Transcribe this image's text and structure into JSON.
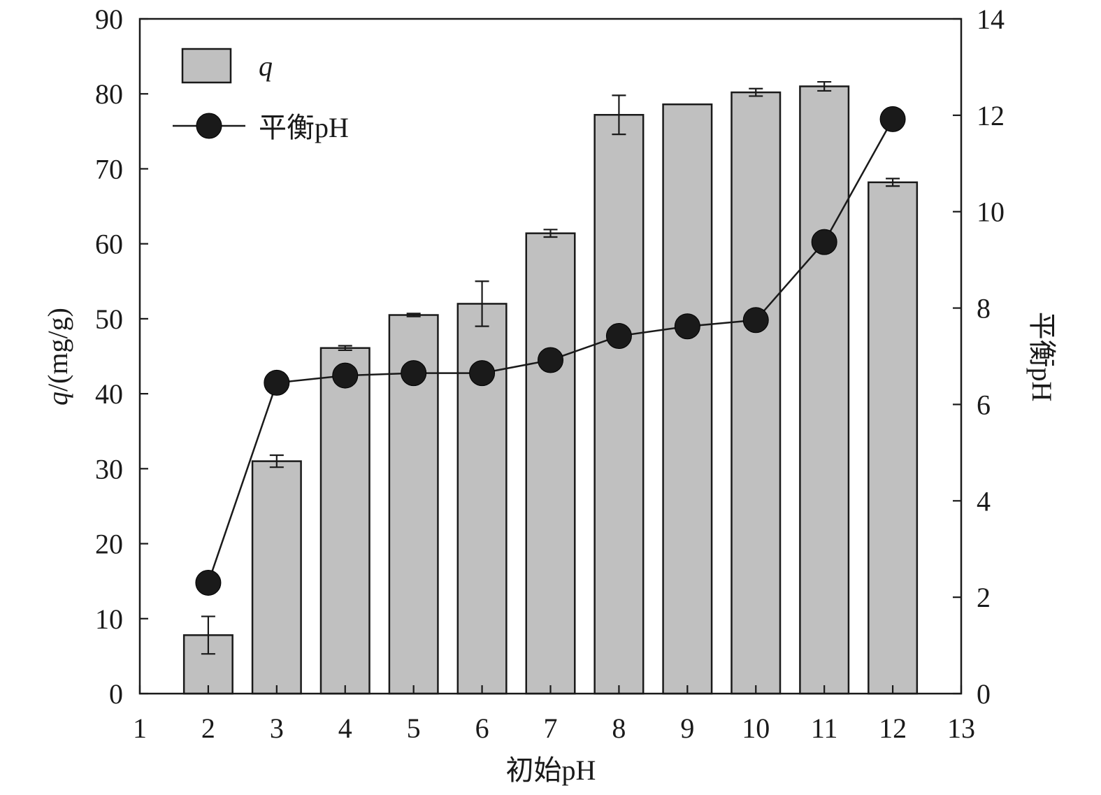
{
  "chart_data": {
    "type": "bar",
    "x": [
      2,
      3,
      4,
      5,
      6,
      7,
      8,
      9,
      10,
      11,
      12
    ],
    "series": [
      {
        "name": "q",
        "type": "bar",
        "axis": "left",
        "values": [
          7.8,
          31.0,
          46.1,
          50.5,
          52.0,
          61.4,
          77.2,
          78.6,
          80.2,
          81.0,
          68.2
        ],
        "errors": [
          2.5,
          0.8,
          0.3,
          0.2,
          3.0,
          0.5,
          2.6,
          0,
          0.5,
          0.6,
          0.5
        ]
      },
      {
        "name": "平衡pH",
        "type": "line",
        "axis": "right",
        "values": [
          2.3,
          6.45,
          6.6,
          6.65,
          6.65,
          6.92,
          7.42,
          7.62,
          7.75,
          9.37,
          11.92
        ]
      }
    ],
    "xlabel": "初始pH",
    "ylabel_italic": "q",
    "ylabel_rest": "/(mg/g)",
    "y2label": "平衡pH",
    "xlim": [
      1,
      13
    ],
    "ylim": [
      0,
      90
    ],
    "y2lim": [
      0,
      14
    ],
    "xticks": [
      "1",
      "2",
      "3",
      "4",
      "5",
      "6",
      "7",
      "8",
      "9",
      "10",
      "11",
      "12",
      "13"
    ],
    "yticks": [
      "0",
      "10",
      "20",
      "30",
      "40",
      "50",
      "60",
      "70",
      "80",
      "90"
    ],
    "y2ticks": [
      "0",
      "2",
      "4",
      "6",
      "8",
      "10",
      "12",
      "14"
    ],
    "legend": {
      "position": "top-left",
      "entries": [
        {
          "label": "q",
          "style": "bar"
        },
        {
          "label": "平衡pH",
          "style": "line-marker"
        }
      ]
    },
    "colors": {
      "bar_fill": "#c0c0c0",
      "outline": "#1a1a1a",
      "marker": "#1a1a1a"
    },
    "grid": false
  }
}
